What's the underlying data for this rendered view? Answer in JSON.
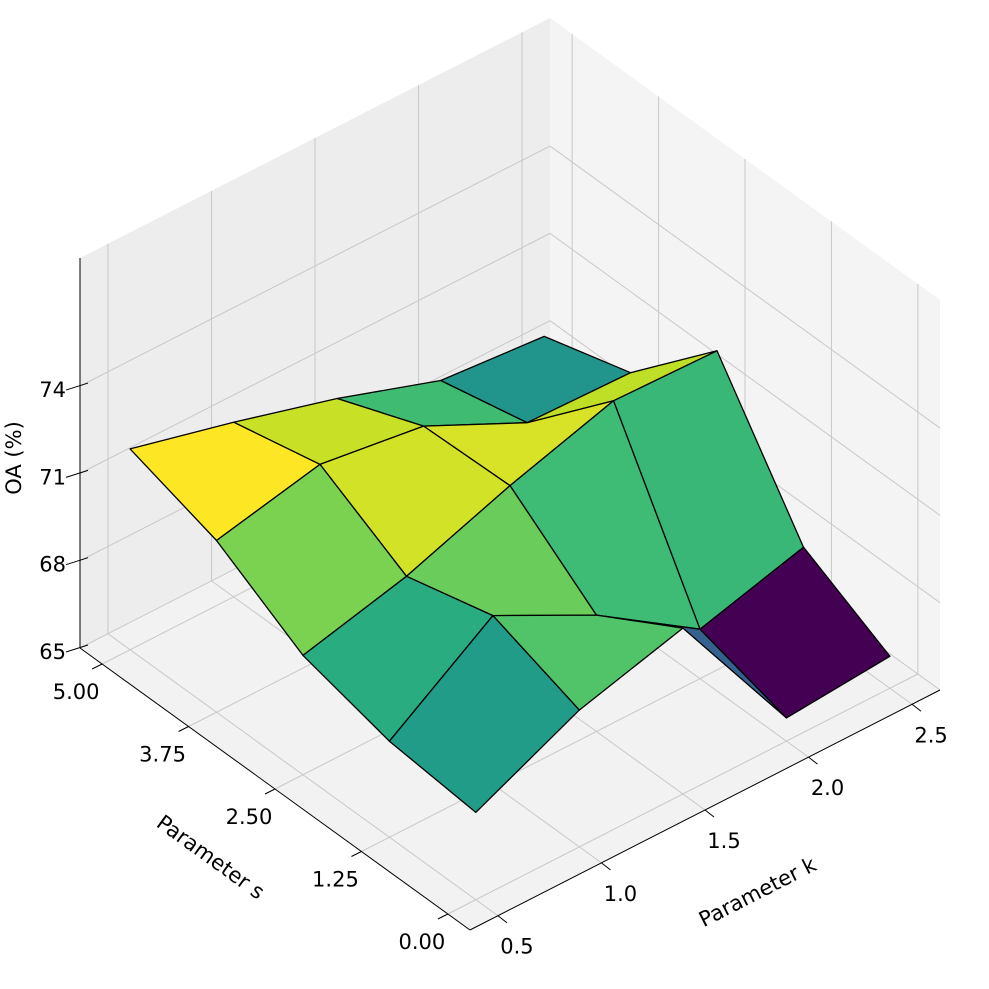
{
  "chart_data": {
    "type": "surface",
    "xlabel": "Parameter k",
    "ylabel": "Parameter s",
    "zlabel": "OA (%)",
    "colormap": "viridis",
    "x": [
      0.5,
      1.0,
      1.5,
      2.0,
      2.5
    ],
    "y": [
      0,
      1.25,
      2.5,
      3.75,
      5
    ],
    "z": [
      [
        68.0,
        69.7,
        70.7,
        65.8,
        66.1
      ],
      [
        68.3,
        70.8,
        69.0,
        66.7,
        67.7
      ],
      [
        69.1,
        70.0,
        71.3,
        72.4,
        72.3
      ],
      [
        70.9,
        71.7,
        71.2,
        69.5,
        69.4
      ],
      [
        71.9,
        71.0,
        70.0,
        68.8,
        68.5
      ]
    ],
    "xlim": [
      0.365,
      2.635
    ],
    "ylim": [
      -0.32,
      5.32
    ],
    "zlim": [
      65,
      78.4
    ],
    "xticks": [
      0.5,
      {
        "value": 1,
        "label": "1.0"
      },
      1.5,
      {
        "value": 2,
        "label": "2.0"
      },
      2.5
    ],
    "yticks": [
      {
        "value": 0,
        "label": "0.00"
      },
      1.25,
      {
        "value": 2.5,
        "label": "2.50"
      },
      3.75,
      {
        "value": 5,
        "label": "5.00"
      }
    ],
    "zticks": [
      65,
      68,
      71,
      74
    ],
    "grid": true
  }
}
